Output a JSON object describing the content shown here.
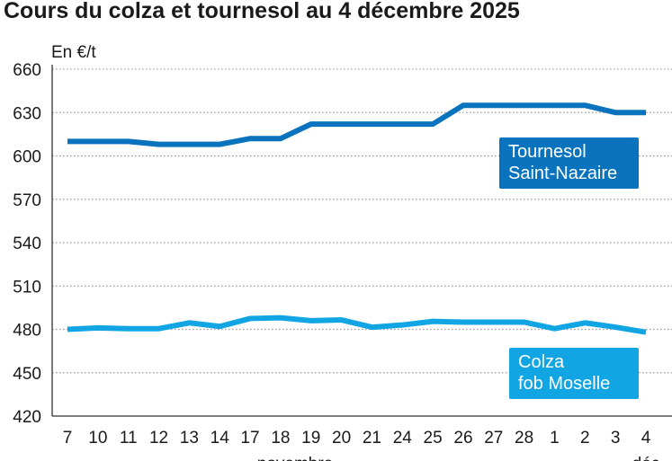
{
  "chart_data": {
    "type": "line",
    "title": "Cours du colza et tournesol au 4 décembre 2025",
    "ylabel": "En €/t",
    "ylim": [
      420,
      660
    ],
    "yticks": [
      420,
      450,
      480,
      510,
      540,
      570,
      600,
      630,
      660
    ],
    "grid": true,
    "categories": [
      "7",
      "10",
      "11",
      "12",
      "13",
      "14",
      "17",
      "18",
      "19",
      "20",
      "21",
      "24",
      "25",
      "26",
      "27",
      "28",
      "1",
      "2",
      "3",
      "4"
    ],
    "month_labels": [
      {
        "label": "novembre",
        "at": "18"
      },
      {
        "label": "déc",
        "at": "4"
      }
    ],
    "series": [
      {
        "name": "Tournesol Saint-Nazaire",
        "name_lines": [
          "Tournesol",
          "Saint-Nazaire"
        ],
        "color": "#0a73bd",
        "values": [
          610,
          610,
          610,
          608,
          608,
          608,
          612,
          612,
          622,
          622,
          622,
          622,
          622,
          635,
          635,
          635,
          635,
          635,
          630,
          630
        ]
      },
      {
        "name": "Colza fob Moselle",
        "name_lines": [
          "Colza",
          "fob Moselle"
        ],
        "color": "#12a5e3",
        "values": [
          480,
          481,
          480.5,
          480.5,
          484.5,
          482,
          487.5,
          488,
          486,
          486.5,
          481.5,
          483,
          485.5,
          485,
          485,
          485,
          480.5,
          484.5,
          481.5,
          478
        ]
      }
    ]
  }
}
